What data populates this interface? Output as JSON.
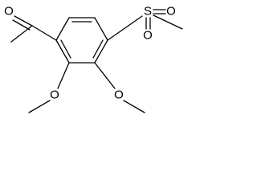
{
  "atoms": {
    "ketone_oxygen": "O",
    "sulfur": "S",
    "sulfonyl_oxygen_1": "O",
    "sulfonyl_oxygen_2": "O",
    "methoxy_oxygen_1": "O",
    "methoxy_oxygen_2": "O"
  }
}
